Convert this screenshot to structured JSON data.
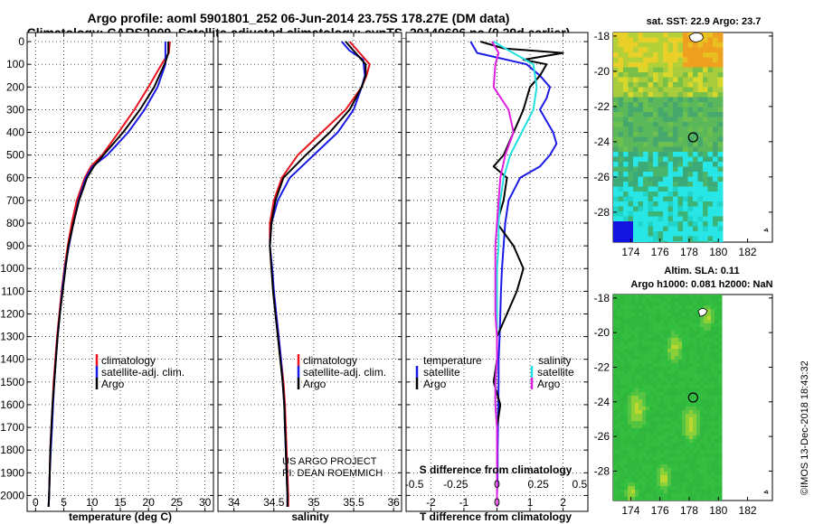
{
  "titles": {
    "line1": "Argo profile: aoml 5901801_252 06-Jun-2014 23.75S 178.27E (DM data)",
    "line2": "Climatology: CARS2009. Satellite-adjusted climatology: synTS_20140606.nc (0.29d earlier)"
  },
  "colors": {
    "climatology": "#e8141e",
    "satellite": "#1a1ae6",
    "argo": "#000000",
    "sal_satellite": "#22e0e0",
    "sal_argo": "#e020e0"
  },
  "depth_axis": {
    "ticks": [
      0,
      100,
      200,
      300,
      400,
      500,
      600,
      700,
      800,
      900,
      1000,
      1100,
      1200,
      1300,
      1400,
      1500,
      1600,
      1700,
      1800,
      1900,
      2000
    ]
  },
  "chart_data": [
    {
      "id": "temperature",
      "type": "line",
      "xlabel": "temperature (deg C)",
      "xlim": [
        -1.5,
        31.5
      ],
      "xticks": [
        0,
        5,
        10,
        15,
        20,
        25,
        30
      ],
      "ylim": [
        2070,
        -40
      ],
      "legend": {
        "position": "bottom-right",
        "entries": [
          "climatology",
          "satellite-adj. clim.",
          "Argo"
        ]
      },
      "series": [
        {
          "name": "climatology",
          "color_key": "climatology",
          "depth": [
            0,
            50,
            100,
            200,
            300,
            400,
            500,
            550,
            600,
            700,
            800,
            900,
            1000,
            1100,
            1200,
            1300,
            1400,
            1500,
            1600,
            1700,
            1800,
            1900,
            2000,
            2050
          ],
          "values": [
            23.8,
            23.6,
            22.3,
            20.0,
            17.5,
            14.7,
            11.8,
            9.8,
            8.7,
            7.3,
            6.4,
            5.7,
            5.1,
            4.6,
            4.2,
            3.8,
            3.5,
            3.2,
            3.0,
            2.8,
            2.6,
            2.5,
            2.4,
            2.3
          ]
        },
        {
          "name": "satellite-adj. clim.",
          "color_key": "satellite",
          "depth": [
            0,
            40,
            100,
            200,
            300,
            400,
            500,
            550,
            600,
            700,
            800,
            900,
            1000,
            1100,
            1200,
            1300,
            1400,
            1500,
            1600,
            1700,
            1800,
            1900,
            2000,
            2050
          ],
          "values": [
            23.0,
            23.0,
            23.0,
            21.6,
            19.3,
            16.4,
            12.7,
            10.1,
            8.9,
            7.6,
            6.7,
            5.9,
            5.2,
            4.7,
            4.3,
            3.9,
            3.6,
            3.3,
            3.1,
            2.9,
            2.7,
            2.5,
            2.4,
            2.3
          ]
        },
        {
          "name": "Argo",
          "color_key": "argo",
          "depth": [
            0,
            50,
            90,
            200,
            300,
            400,
            500,
            550,
            600,
            700,
            800,
            900,
            1000,
            1100,
            1200,
            1300,
            1400,
            1500,
            1600,
            1700,
            1800,
            1900,
            2000,
            2050
          ],
          "values": [
            23.5,
            23.5,
            23.0,
            21.0,
            18.5,
            15.5,
            12.0,
            10.3,
            9.1,
            7.7,
            6.7,
            5.8,
            5.3,
            4.8,
            4.3,
            3.9,
            3.6,
            3.3,
            3.0,
            2.8,
            2.6,
            2.5,
            2.4,
            2.3
          ]
        }
      ]
    },
    {
      "id": "salinity",
      "type": "line",
      "xlabel": "salinity",
      "xlim": [
        33.8,
        36.1
      ],
      "xticks": [
        34,
        34.5,
        35,
        35.5,
        36
      ],
      "ylim": [
        2070,
        -40
      ],
      "legend": {
        "position": "bottom-right",
        "entries": [
          "climatology",
          "satellite-adj. clim.",
          "Argo"
        ]
      },
      "series": [
        {
          "name": "climatology",
          "color_key": "climatology",
          "depth": [
            0,
            40,
            100,
            150,
            200,
            300,
            400,
            500,
            600,
            700,
            800,
            900,
            1000,
            1100,
            1200,
            1300,
            1400,
            1500,
            1600,
            1700,
            1800,
            1900,
            2000,
            2050
          ],
          "values": [
            35.45,
            35.55,
            35.7,
            35.66,
            35.6,
            35.4,
            35.1,
            34.8,
            34.6,
            34.5,
            34.45,
            34.45,
            34.47,
            34.5,
            34.53,
            34.56,
            34.59,
            34.62,
            34.64,
            34.65,
            34.66,
            34.67,
            34.68,
            34.68
          ]
        },
        {
          "name": "satellite-adj. clim.",
          "color_key": "satellite",
          "depth": [
            0,
            40,
            80,
            150,
            200,
            300,
            400,
            500,
            600,
            700,
            800,
            900,
            1000,
            1100,
            1200,
            1300,
            1400,
            1500,
            1600,
            1700,
            1800,
            1900,
            2000,
            2050
          ],
          "values": [
            35.35,
            35.45,
            35.62,
            35.64,
            35.6,
            35.5,
            35.3,
            35.0,
            34.7,
            34.55,
            34.47,
            34.45,
            34.48,
            34.5,
            34.53,
            34.56,
            34.59,
            34.61,
            34.63,
            34.64,
            34.65,
            34.66,
            34.67,
            34.67
          ]
        },
        {
          "name": "Argo",
          "color_key": "argo",
          "depth": [
            0,
            40,
            100,
            150,
            200,
            300,
            400,
            500,
            600,
            700,
            800,
            900,
            1000,
            1100,
            1200,
            1300,
            1400,
            1500,
            1600,
            1700,
            1800,
            1900,
            2000,
            2050
          ],
          "values": [
            35.4,
            35.5,
            35.65,
            35.65,
            35.6,
            35.45,
            35.2,
            34.9,
            34.62,
            34.52,
            34.47,
            34.45,
            34.47,
            34.49,
            34.52,
            34.55,
            34.58,
            34.61,
            34.63,
            34.64,
            34.65,
            34.66,
            34.67,
            34.67
          ]
        }
      ]
    },
    {
      "id": "differences",
      "type": "line",
      "xlabel": "T difference from climatology",
      "xlabel_top": "S difference from climatology",
      "xlim": [
        -2.75,
        2.75
      ],
      "xticks": [
        -2,
        -1,
        0,
        1,
        2
      ],
      "xticks_top": [
        -0.5,
        -0.25,
        0,
        0.25,
        0.5
      ],
      "xticklabels_top": [
        "-0.5",
        "-0.25",
        "0",
        "0.25",
        "0.5"
      ],
      "ylim": [
        2070,
        -40
      ],
      "legend": {
        "position": "bottom",
        "headers": [
          "temperature",
          "salinity"
        ],
        "entries": [
          "satellite",
          "Argo",
          "satellite",
          "Argo"
        ]
      },
      "series": [
        {
          "name": "satellite",
          "group": "temperature",
          "color_key": "satellite",
          "depth": [
            0,
            50,
            100,
            150,
            200,
            250,
            300,
            350,
            400,
            450,
            500,
            550,
            600,
            700,
            800,
            900,
            1000,
            1100,
            1200,
            1300,
            1400,
            1500,
            1600,
            1700,
            1800,
            1900,
            2000,
            2050
          ],
          "values": [
            -0.8,
            -0.6,
            0.9,
            1.3,
            1.6,
            1.5,
            1.3,
            1.5,
            1.7,
            1.8,
            1.6,
            1.3,
            0.7,
            0.35,
            0.25,
            0.2,
            0.15,
            0.12,
            0.1,
            0.08,
            0.05,
            0.05,
            0.04,
            0.03,
            0.02,
            0.02,
            0.0,
            0.0
          ]
        },
        {
          "name": "Argo",
          "group": "temperature",
          "color_key": "argo",
          "depth": [
            0,
            30,
            50,
            80,
            100,
            150,
            200,
            300,
            400,
            500,
            550,
            600,
            700,
            800,
            900,
            1000,
            1100,
            1200,
            1300,
            1400,
            1500,
            1600,
            1700,
            1800,
            1900,
            2000,
            2050
          ],
          "values": [
            -0.5,
            0.2,
            2.0,
            0.8,
            1.5,
            1.3,
            1.0,
            0.8,
            0.5,
            0.2,
            -0.1,
            0.3,
            0.2,
            0.0,
            0.5,
            0.8,
            0.6,
            0.3,
            0.0,
            0.0,
            -0.1,
            0.1,
            0.0,
            0.0,
            0.0,
            0.0,
            0.0
          ]
        },
        {
          "name": "satellite",
          "group": "salinity",
          "color_key": "sal_satellite",
          "depth": [
            0,
            30,
            100,
            200,
            300,
            400,
            500,
            600,
            700,
            800,
            900,
            1000,
            1100,
            1200,
            1300,
            1400,
            1500,
            1600,
            1700,
            1800,
            1900,
            2000,
            2050
          ],
          "values": [
            -0.02,
            0.05,
            0.22,
            0.24,
            0.22,
            0.15,
            0.08,
            0.04,
            0.02,
            0.01,
            0.01,
            0.0,
            0.0,
            0.0,
            0.0,
            0.0,
            -0.01,
            -0.01,
            0.0,
            0.0,
            0.0,
            0.0,
            0.0
          ]
        },
        {
          "name": "Argo",
          "group": "salinity",
          "color_key": "sal_argo",
          "depth": [
            0,
            50,
            100,
            200,
            300,
            400,
            500,
            600,
            700,
            800,
            900,
            1000,
            1100,
            1200,
            1300,
            1400,
            1500,
            1600,
            1700,
            1800,
            1900,
            2000,
            2050
          ],
          "values": [
            -0.03,
            0.01,
            -0.01,
            -0.02,
            0.07,
            0.1,
            0.05,
            0.02,
            0.01,
            0.0,
            -0.01,
            -0.01,
            -0.01,
            -0.01,
            0.0,
            0.0,
            -0.01,
            -0.01,
            0.0,
            0.0,
            0.0,
            0.0,
            0.0
          ]
        }
      ]
    },
    {
      "id": "sst-map",
      "type": "heatmap",
      "title_line1": "sat. SST: 22.9 Argo: 23.7",
      "xticks": [
        174,
        176,
        178,
        180,
        182
      ],
      "yticks": [
        -18,
        -20,
        -22,
        -24,
        -26,
        -28
      ],
      "xlim": [
        172.8,
        183.7
      ],
      "ylim": [
        -17.8,
        -29.7
      ],
      "data_xlim": [
        172.8,
        180.0
      ],
      "argo_position": {
        "lon": 178.27,
        "lat": -23.75
      }
    },
    {
      "id": "sla-map",
      "type": "heatmap",
      "title_line1": "Altim. SLA: 0.11",
      "title_line2": "Argo h1000: 0.081 h2000: NaN",
      "xticks": [
        174,
        176,
        178,
        180,
        182
      ],
      "yticks": [
        -18,
        -20,
        -22,
        -24,
        -26,
        -28
      ],
      "xlim": [
        172.8,
        183.7
      ],
      "ylim": [
        -17.8,
        -29.7
      ],
      "data_xlim": [
        172.8,
        180.0
      ],
      "argo_position": {
        "lon": 178.27,
        "lat": -23.75
      }
    }
  ],
  "credits": {
    "project": "US ARGO PROJECT",
    "pi": "PI: DEAN ROEMMICH",
    "imos": "©IMOS 13-Dec-2018 18:43:32"
  }
}
